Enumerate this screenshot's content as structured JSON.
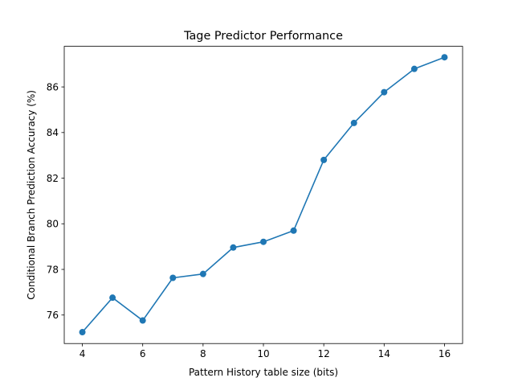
{
  "chart_data": {
    "type": "line",
    "title": "Tage Predictor Performance",
    "xlabel": "Pattern History table size (bits)",
    "ylabel": "Conditional Branch Prediction Accuracy (%)",
    "xlim": [
      3.4,
      16.6
    ],
    "ylim": [
      74.75,
      87.78
    ],
    "xticks": [
      4,
      6,
      8,
      10,
      12,
      14,
      16
    ],
    "yticks": [
      76,
      78,
      80,
      82,
      84,
      86
    ],
    "grid": false,
    "series": [
      {
        "color": "#1f77b4",
        "marker": "circle",
        "x": [
          4,
          5,
          6,
          7,
          8,
          9,
          10,
          11,
          12,
          13,
          14,
          15,
          16
        ],
        "y": [
          75.25,
          76.76,
          75.76,
          77.63,
          77.8,
          78.96,
          79.21,
          79.7,
          82.8,
          84.42,
          85.77,
          86.79,
          87.3
        ]
      }
    ]
  }
}
